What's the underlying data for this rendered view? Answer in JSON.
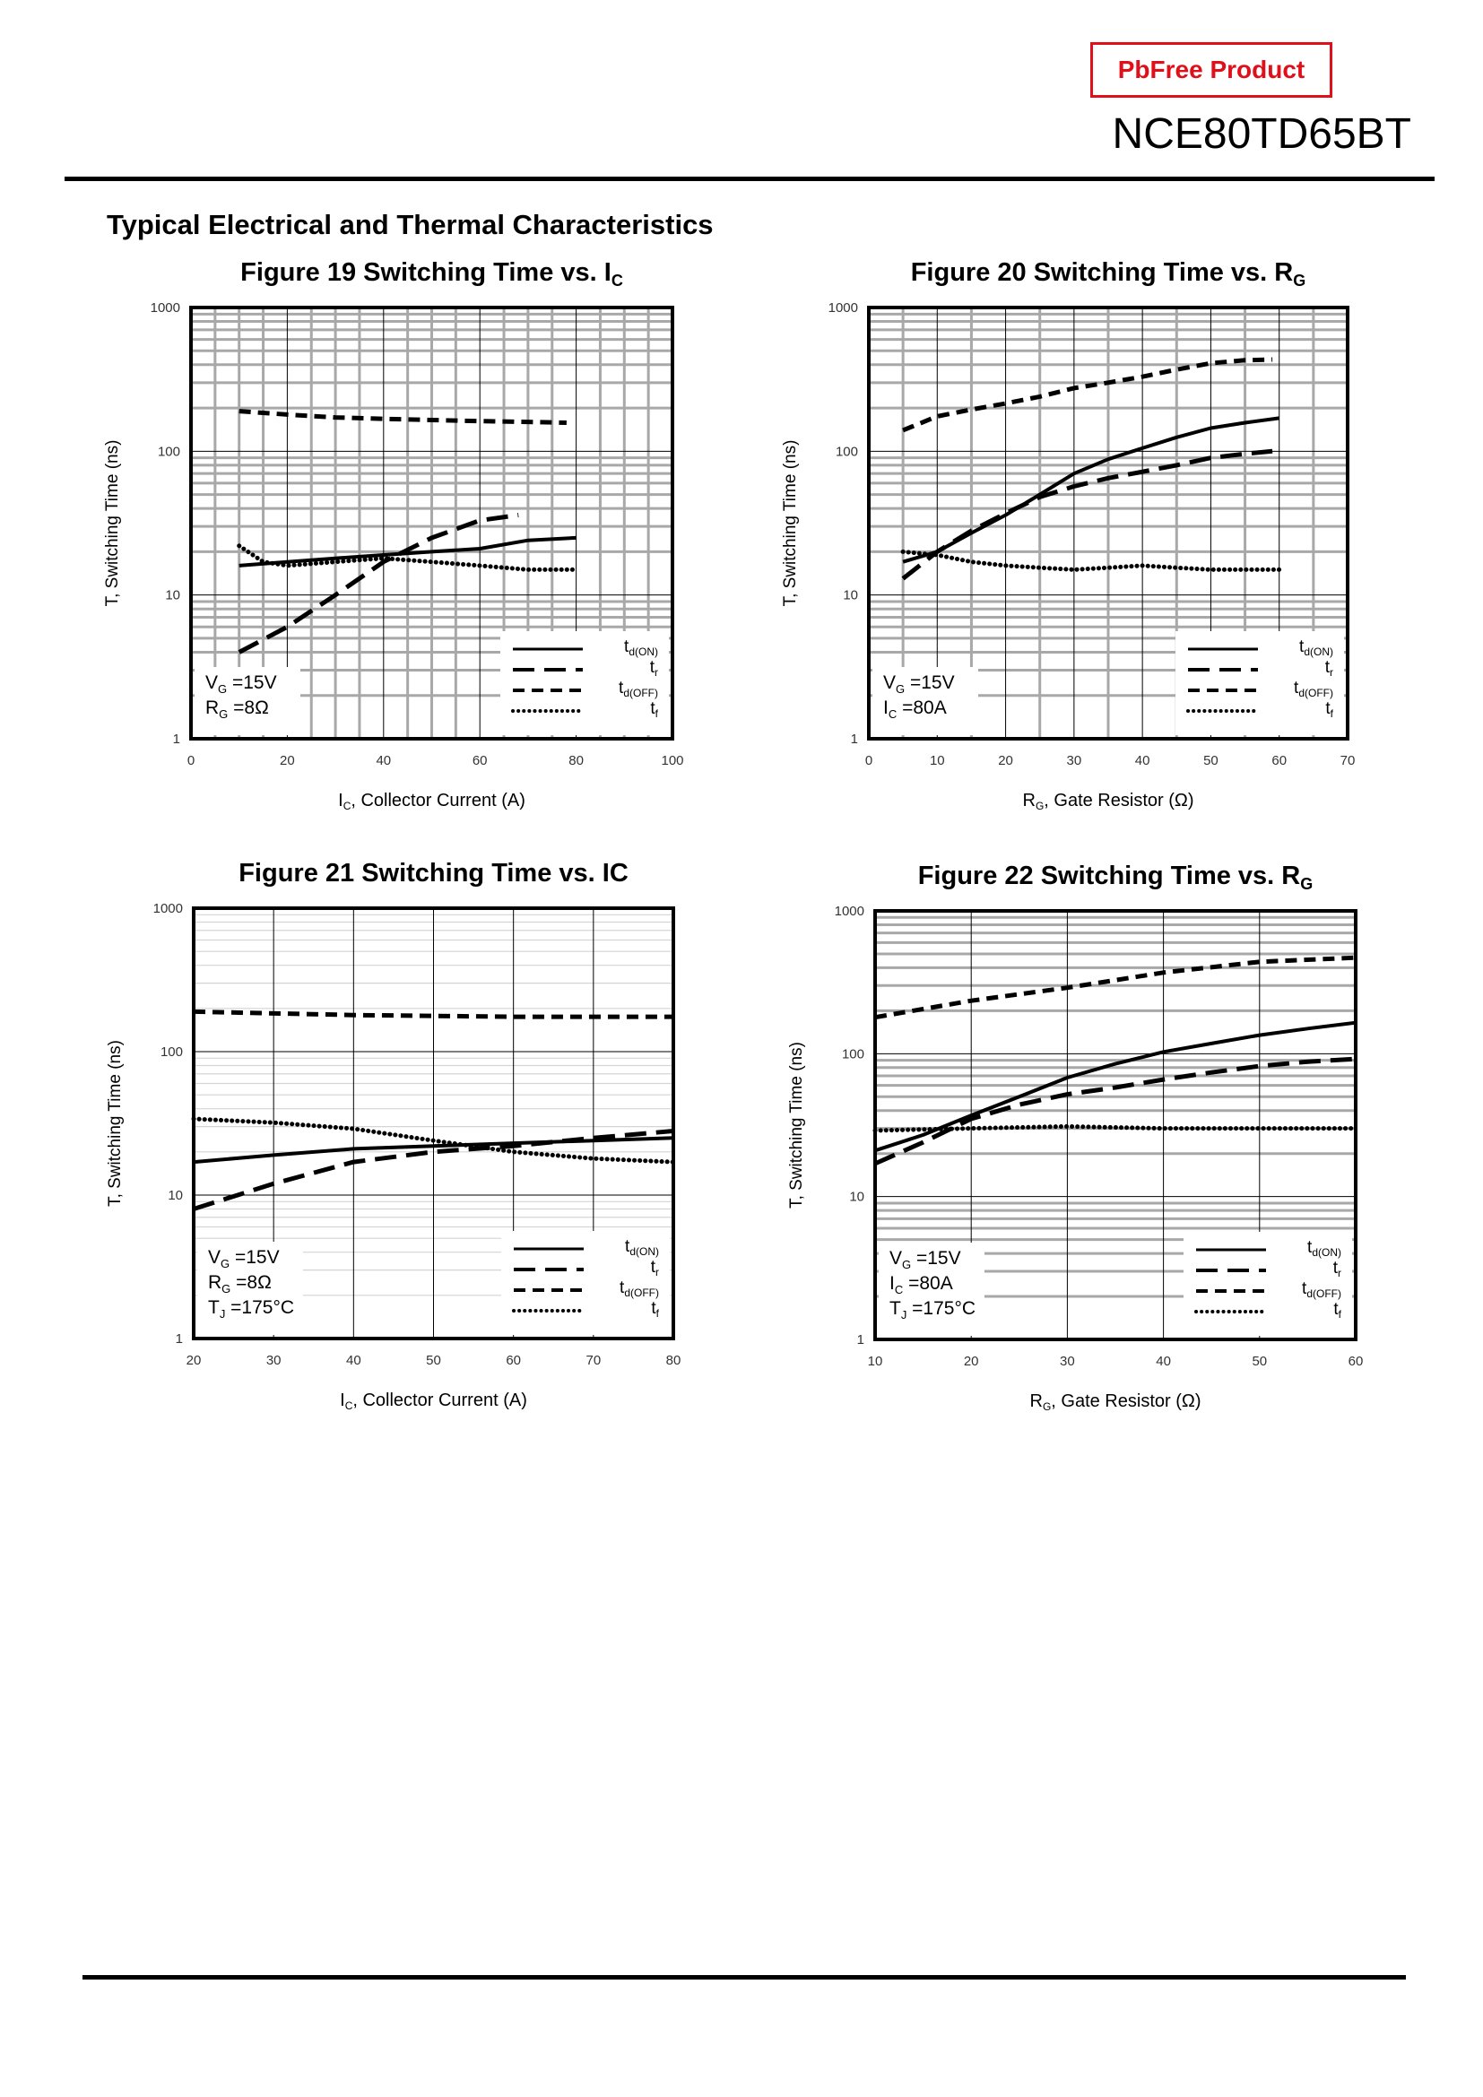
{
  "header": {
    "badge": "PbFree Product",
    "part_number": "NCE80TD65BT",
    "section_title": "Typical Electrical and Thermal Characteristics",
    "badge_color": "#e0101a"
  },
  "chart_data": [
    {
      "type": "line",
      "title": {
        "main": "Figure 19 Switching Time vs. I",
        "sub": "C"
      },
      "xlabel": {
        "main": "I",
        "sub": "C",
        "rest": ", Collector Current (A)"
      },
      "ylabel": "T, Switching Time (ns)",
      "xlim": [
        0,
        100
      ],
      "xticks": [
        0,
        20,
        40,
        60,
        80,
        100
      ],
      "x_minor_step": 5,
      "ylim": [
        1,
        1000
      ],
      "yscale": "log",
      "yticks": [
        "1",
        "10",
        "100",
        "1000"
      ],
      "grid": true,
      "grid_style": "gray-minor-both",
      "legend": "bottom-right",
      "conditions": [
        {
          "main": "V",
          "sub": "G",
          "rest": " =15V"
        },
        {
          "main": "R",
          "sub": "G",
          "rest": " =8Ω"
        }
      ],
      "series": [
        {
          "name": {
            "main": "t",
            "sub": "d(ON)"
          },
          "style": "solid",
          "x": [
            10,
            20,
            30,
            40,
            50,
            60,
            70,
            80
          ],
          "y": [
            16,
            17,
            18,
            19,
            20,
            21,
            24,
            25
          ]
        },
        {
          "name": {
            "main": "t",
            "sub": "r"
          },
          "style": "long-dash",
          "x": [
            10,
            20,
            30,
            40,
            50,
            60,
            68
          ],
          "y": [
            4,
            6,
            10,
            17,
            25,
            33,
            36
          ]
        },
        {
          "name": {
            "main": "t",
            "sub": "d(OFF)"
          },
          "style": "short-dash",
          "x": [
            10,
            20,
            30,
            40,
            50,
            60,
            70,
            78
          ],
          "y": [
            190,
            180,
            172,
            168,
            165,
            162,
            160,
            158
          ]
        },
        {
          "name": {
            "main": "t",
            "sub": "f"
          },
          "style": "dotted",
          "x": [
            10,
            15,
            20,
            30,
            40,
            50,
            60,
            70,
            80
          ],
          "y": [
            22,
            17,
            16,
            17,
            18,
            17,
            16,
            15,
            15
          ]
        }
      ]
    },
    {
      "type": "line",
      "title": {
        "main": "Figure 20 Switching Time vs. R",
        "sub": "G"
      },
      "xlabel": {
        "main": "R",
        "sub": "G",
        "rest": ", Gate Resistor (Ω)"
      },
      "ylabel": "T, Switching Time (ns)",
      "xlim": [
        0,
        70
      ],
      "xticks": [
        0,
        10,
        20,
        30,
        40,
        50,
        60,
        70
      ],
      "x_minor_step": 5,
      "ylim": [
        1,
        1000
      ],
      "yscale": "log",
      "yticks": [
        "1",
        "10",
        "100",
        "1000"
      ],
      "grid": true,
      "grid_style": "gray-minor-both",
      "legend": "bottom-right",
      "conditions": [
        {
          "main": "V",
          "sub": "G",
          "rest": " =15V"
        },
        {
          "main": "I",
          "sub": "C",
          "rest": " =80A"
        }
      ],
      "series": [
        {
          "name": {
            "main": "t",
            "sub": "d(ON)"
          },
          "style": "solid",
          "x": [
            5,
            10,
            15,
            20,
            25,
            30,
            35,
            40,
            45,
            50,
            55,
            60
          ],
          "y": [
            17,
            20,
            27,
            36,
            50,
            70,
            88,
            105,
            125,
            145,
            158,
            170
          ]
        },
        {
          "name": {
            "main": "t",
            "sub": "r"
          },
          "style": "long-dash",
          "x": [
            5,
            10,
            15,
            20,
            25,
            30,
            35,
            40,
            45,
            50,
            55,
            59
          ],
          "y": [
            13,
            20,
            28,
            37,
            48,
            57,
            65,
            72,
            80,
            90,
            96,
            100
          ]
        },
        {
          "name": {
            "main": "t",
            "sub": "d(OFF)"
          },
          "style": "short-dash",
          "x": [
            5,
            10,
            15,
            20,
            25,
            30,
            35,
            40,
            45,
            50,
            55,
            59
          ],
          "y": [
            140,
            175,
            195,
            215,
            240,
            275,
            300,
            330,
            370,
            410,
            430,
            435
          ]
        },
        {
          "name": {
            "main": "t",
            "sub": "f"
          },
          "style": "dotted",
          "x": [
            5,
            10,
            15,
            20,
            25,
            30,
            35,
            40,
            45,
            50,
            60
          ],
          "y": [
            20,
            19,
            17,
            16,
            15.5,
            15,
            15.5,
            16,
            15.5,
            15,
            15
          ]
        }
      ]
    },
    {
      "type": "line",
      "title": {
        "main": "Figure 21 Switching Time vs. IC",
        "sub": ""
      },
      "xlabel": {
        "main": "I",
        "sub": "C",
        "rest": ", Collector Current (A)"
      },
      "ylabel": "T, Switching Time (ns)",
      "xlim": [
        20,
        80
      ],
      "xticks": [
        20,
        30,
        40,
        50,
        60,
        70,
        80
      ],
      "x_minor_step": 0,
      "ylim": [
        1,
        1000
      ],
      "yscale": "log",
      "yticks": [
        "1",
        "10",
        "100",
        "1000"
      ],
      "grid": true,
      "grid_style": "light-horizontal",
      "legend": "bottom-right",
      "conditions": [
        {
          "main": "V",
          "sub": "G",
          "rest": " =15V"
        },
        {
          "main": "R",
          "sub": "G",
          "rest": " =8Ω"
        },
        {
          "main": "T",
          "sub": "J",
          "rest": " =175°C"
        }
      ],
      "series": [
        {
          "name": {
            "main": "t",
            "sub": "d(ON)"
          },
          "style": "solid",
          "x": [
            20,
            30,
            40,
            50,
            60,
            70,
            80
          ],
          "y": [
            17,
            19,
            21,
            22,
            23,
            24,
            25
          ]
        },
        {
          "name": {
            "main": "t",
            "sub": "r"
          },
          "style": "long-dash",
          "x": [
            20,
            30,
            40,
            50,
            60,
            70,
            80
          ],
          "y": [
            8,
            12,
            17,
            20,
            22,
            25,
            28
          ]
        },
        {
          "name": {
            "main": "t",
            "sub": "d(OFF)"
          },
          "style": "short-dash",
          "x": [
            20,
            40,
            60,
            80
          ],
          "y": [
            190,
            180,
            175,
            175
          ]
        },
        {
          "name": {
            "main": "t",
            "sub": "f"
          },
          "style": "dotted",
          "x": [
            20,
            30,
            40,
            50,
            60,
            70,
            80
          ],
          "y": [
            34,
            32,
            29,
            24,
            20,
            18,
            17
          ]
        }
      ]
    },
    {
      "type": "line",
      "title": {
        "main": "Figure 22 Switching Time vs. R",
        "sub": "G"
      },
      "xlabel": {
        "main": "R",
        "sub": "G",
        "rest": ", Gate Resistor (Ω)"
      },
      "ylabel": "T, Switching Time (ns)",
      "xlim": [
        10,
        60
      ],
      "xticks": [
        10,
        20,
        30,
        40,
        50,
        60
      ],
      "x_minor_step": 0,
      "ylim": [
        1,
        1000
      ],
      "yscale": "log",
      "yticks": [
        "1",
        "10",
        "100",
        "1000"
      ],
      "grid": true,
      "grid_style": "gray-horizontal",
      "legend": "bottom-right",
      "conditions": [
        {
          "main": "V",
          "sub": "G",
          "rest": " =15V"
        },
        {
          "main": "I",
          "sub": "C",
          "rest": " =80A"
        },
        {
          "main": "T",
          "sub": "J",
          "rest": " =175°C"
        }
      ],
      "series": [
        {
          "name": {
            "main": "t",
            "sub": "d(ON)"
          },
          "style": "solid",
          "x": [
            10,
            15,
            20,
            25,
            30,
            35,
            40,
            45,
            50,
            55,
            60
          ],
          "y": [
            21,
            27,
            37,
            50,
            68,
            85,
            103,
            118,
            135,
            150,
            165
          ]
        },
        {
          "name": {
            "main": "t",
            "sub": "r"
          },
          "style": "long-dash",
          "x": [
            10,
            15,
            20,
            25,
            30,
            35,
            40,
            45,
            50,
            55,
            60
          ],
          "y": [
            17,
            24,
            35,
            44,
            52,
            58,
            66,
            74,
            82,
            88,
            92
          ]
        },
        {
          "name": {
            "main": "t",
            "sub": "d(OFF)"
          },
          "style": "short-dash",
          "x": [
            10,
            20,
            30,
            40,
            50,
            60
          ],
          "y": [
            180,
            235,
            290,
            370,
            440,
            470
          ]
        },
        {
          "name": {
            "main": "t",
            "sub": "f"
          },
          "style": "dotted",
          "x": [
            10,
            20,
            30,
            40,
            50,
            60
          ],
          "y": [
            29,
            30,
            31,
            30,
            30,
            30
          ]
        }
      ]
    }
  ]
}
